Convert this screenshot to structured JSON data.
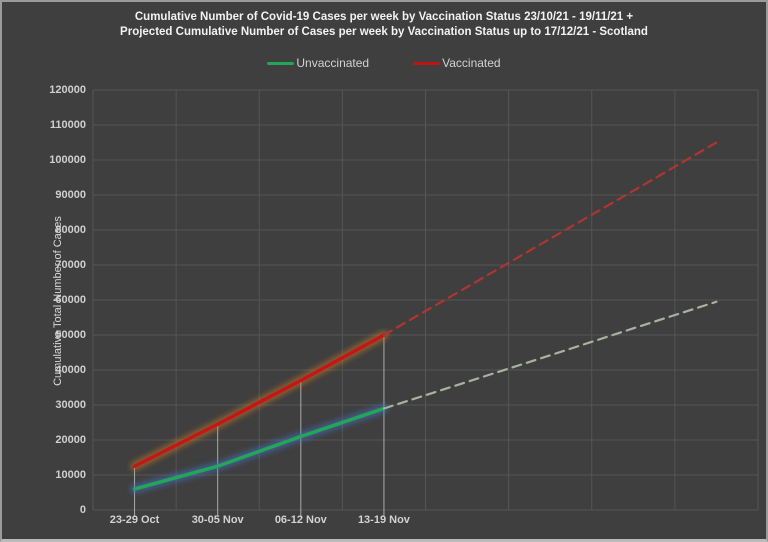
{
  "window": {
    "background": "#3f3f3f",
    "border_color": "#9b9b9b"
  },
  "title": {
    "line1": "Cumulative Number of Covid-19 Cases per week by Vaccination Status 23/10/21 - 19/11/21 +",
    "line2": "Projected Cumulative Number of Cases per week by Vaccination Status up to 17/12/21 - Scotland",
    "color": "#f2f2f2"
  },
  "legend": {
    "items": [
      {
        "label": "Unvaccinated",
        "color": "#23a55a"
      },
      {
        "label": "Vaccinated",
        "color": "#c01414"
      }
    ]
  },
  "y_axis": {
    "title": "Cumulative Total Number of Cases",
    "min": 0,
    "max": 120000,
    "tick_step": 10000,
    "tick_labels": [
      "0",
      "10000",
      "20000",
      "30000",
      "40000",
      "50000",
      "60000",
      "70000",
      "80000",
      "90000",
      "100000",
      "110000",
      "120000"
    ]
  },
  "x_axis": {
    "labels": [
      "23-29 Oct",
      "30-05 Nov",
      "06-12 Nov",
      "13-19 Nov"
    ],
    "labeled_slots": [
      1,
      2,
      3,
      4
    ]
  },
  "chart_data": {
    "type": "line",
    "title": "Cumulative Number of Covid-19 Cases per week by Vaccination Status 23/10/21 - 19/11/21 + Projected Cumulative Number of Cases per week by Vaccination Status up to 17/12/21 - Scotland",
    "xlabel": "",
    "ylabel": "Cumulative Total Number of Cases",
    "ylim": [
      0,
      120000
    ],
    "x_slots": 8,
    "grid": true,
    "grid_color": "#555555",
    "legend_position": "top",
    "categories": [
      "23-29 Oct",
      "30-05 Nov",
      "06-12 Nov",
      "13-19 Nov",
      "",
      "",
      "",
      ""
    ],
    "series": [
      {
        "name": "Unvaccinated",
        "style": "solid",
        "color": "#23a55a",
        "glow": "#4472c4",
        "slots": [
          1,
          2,
          3,
          4
        ],
        "values": [
          6000,
          12500,
          21000,
          29000
        ]
      },
      {
        "name": "Vaccinated",
        "style": "solid",
        "color": "#c81414",
        "glow": "#c87828",
        "slots": [
          1,
          2,
          3,
          4
        ],
        "values": [
          12500,
          24500,
          37000,
          50000
        ]
      },
      {
        "name": "Unvaccinated projected",
        "style": "dashed",
        "color": "#a8b2a0",
        "glow": null,
        "slots": [
          4,
          5,
          6,
          7,
          8
        ],
        "values": [
          29000,
          36600,
          44200,
          51900,
          59500
        ]
      },
      {
        "name": "Vaccinated projected",
        "style": "dashed",
        "color": "#b03430",
        "glow": null,
        "slots": [
          4,
          5,
          6,
          7,
          8
        ],
        "values": [
          50000,
          63700,
          77500,
          91200,
          105000
        ]
      }
    ],
    "drop_lines": {
      "slots": [
        1,
        2,
        3,
        4
      ],
      "top_values": [
        12500,
        24500,
        37000,
        50000
      ],
      "color": "#bdbdbd"
    }
  }
}
